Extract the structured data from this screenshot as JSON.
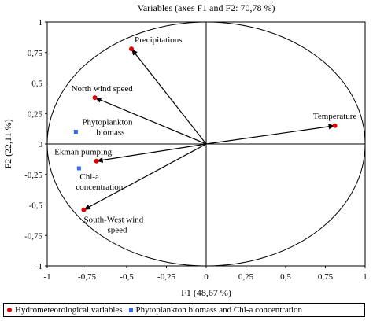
{
  "chart_data": {
    "type": "scatter",
    "title": "Variables (axes F1 and F2: 70,78 %)",
    "xlabel": "F1 (48,67 %)",
    "ylabel": "F2 (22,11 %)",
    "xlim": [
      -1,
      1
    ],
    "ylim": [
      -1,
      1
    ],
    "x_ticks": [
      "-1",
      "-0,75",
      "-0,5",
      "-0,25",
      "0",
      "0,25",
      "0,5",
      "0,75",
      "1"
    ],
    "y_ticks": [
      "1",
      "0,75",
      "0,5",
      "0,25",
      "0",
      "-0,25",
      "-0,5",
      "-0,75",
      "-1"
    ],
    "grid": false,
    "correlation_circle": true,
    "series": [
      {
        "name": "Hydrometeorological variables",
        "marker": "circle",
        "color": "#e00000",
        "vectors": true,
        "points": [
          {
            "label": "Precipitations",
            "x": -0.47,
            "y": 0.78
          },
          {
            "label": "North wind speed",
            "x": -0.7,
            "y": 0.38
          },
          {
            "label": "Temperature",
            "x": 0.81,
            "y": 0.15
          },
          {
            "label": "Ekman pumping",
            "x": -0.69,
            "y": -0.14
          },
          {
            "label": "South-West wind\nspeed",
            "x": -0.77,
            "y": -0.54
          }
        ]
      },
      {
        "name": "Phytoplankton biomass and Chl-a concentration",
        "marker": "square",
        "color": "#3366ff",
        "vectors": false,
        "points": [
          {
            "label": "Phytoplankton\nbiomass",
            "x": -0.82,
            "y": 0.1
          },
          {
            "label": "Chl-a\nconcentration",
            "x": -0.8,
            "y": -0.2
          }
        ]
      }
    ],
    "legend_position": "bottom"
  }
}
